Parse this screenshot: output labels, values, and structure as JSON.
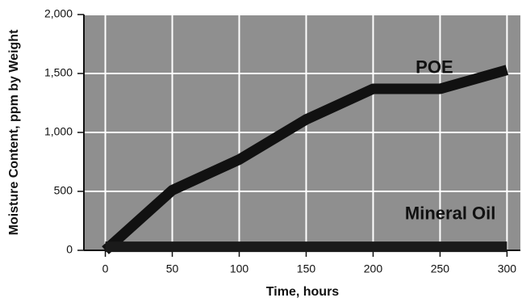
{
  "chart_data": {
    "type": "line",
    "x_label": "Time, hours",
    "y_label": "Moisture Content, ppm by Weight",
    "x": [
      0,
      50,
      100,
      150,
      200,
      250,
      300
    ],
    "series": [
      {
        "name": "POE",
        "color": "#111111",
        "values": [
          0,
          510,
          770,
          1110,
          1370,
          1370,
          1530
        ]
      },
      {
        "name": "Mineral Oil",
        "color": "#1a1a1a",
        "values": [
          30,
          30,
          30,
          30,
          30,
          30,
          30
        ]
      }
    ],
    "xlim": [
      -16,
      310
    ],
    "xticks": [
      0,
      50,
      100,
      150,
      200,
      250,
      300
    ],
    "ylim": [
      0,
      2000
    ],
    "yticks": [
      0,
      500,
      {
        "value": 1000,
        "label": "1,000"
      },
      {
        "value": 1500,
        "label": "1,500"
      },
      {
        "value": 2000,
        "label": "2,000"
      }
    ],
    "grid": true,
    "background": "#8f8f8f"
  }
}
